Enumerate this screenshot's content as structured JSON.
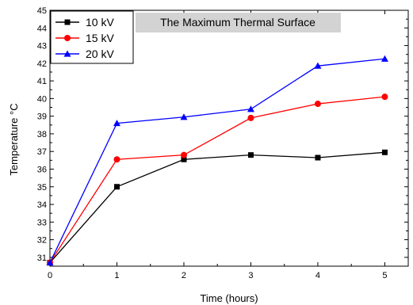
{
  "chart_data": {
    "type": "line",
    "title": "The Maximum Thermal Surface",
    "xlabel": "Time (hours)",
    "ylabel": "Temperature °C",
    "xlim": [
      0,
      5.35
    ],
    "ylim": [
      30.5,
      45
    ],
    "xticks": [
      0,
      1,
      2,
      3,
      4,
      5
    ],
    "yticks": [
      31,
      32,
      33,
      34,
      35,
      36,
      37,
      38,
      39,
      40,
      41,
      42,
      43,
      44,
      45
    ],
    "grid": false,
    "legend_position": "top-left",
    "series": [
      {
        "name": "10 kV",
        "color": "#000000",
        "marker": "square",
        "x": [
          0,
          1,
          2,
          3,
          4,
          5
        ],
        "y": [
          30.7,
          35.0,
          36.55,
          36.8,
          36.65,
          36.95
        ]
      },
      {
        "name": "15 kV",
        "color": "#ff0000",
        "marker": "circle",
        "x": [
          0,
          1,
          2,
          3,
          4,
          5
        ],
        "y": [
          30.7,
          36.55,
          36.8,
          38.9,
          39.7,
          40.1
        ]
      },
      {
        "name": "20 kV",
        "color": "#0000ff",
        "marker": "triangle",
        "x": [
          0,
          1,
          2,
          3,
          4,
          5
        ],
        "y": [
          30.7,
          38.6,
          38.95,
          39.4,
          41.85,
          42.25
        ]
      }
    ]
  }
}
